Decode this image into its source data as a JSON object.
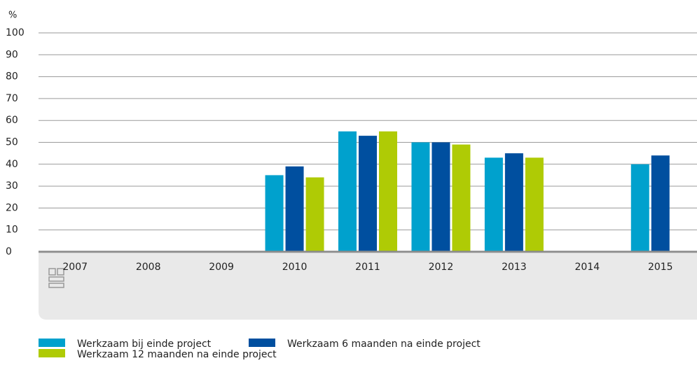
{
  "chart_data": {
    "type": "bar",
    "y_label": "%",
    "categories": [
      "2007",
      "2008",
      "2009",
      "2010",
      "2011",
      "2012",
      "2013",
      "2014",
      "2015"
    ],
    "series": [
      {
        "name": "Werkzaam bij einde project",
        "color": "#00a1cd",
        "values": [
          null,
          null,
          null,
          35,
          55,
          50,
          43,
          null,
          40
        ]
      },
      {
        "name": "Werkzaam 6 maanden na einde project",
        "color": "#004f9f",
        "values": [
          null,
          null,
          null,
          39,
          53,
          50,
          45,
          null,
          44
        ]
      },
      {
        "name": "Werkzaam 12 maanden na einde project",
        "color": "#afcb05",
        "values": [
          null,
          null,
          null,
          34,
          55,
          49,
          43,
          null,
          null
        ]
      }
    ],
    "ylim": [
      0,
      100
    ],
    "yticks": [
      0,
      10,
      20,
      30,
      40,
      50,
      60,
      70,
      80,
      90,
      100
    ],
    "grid": true
  }
}
